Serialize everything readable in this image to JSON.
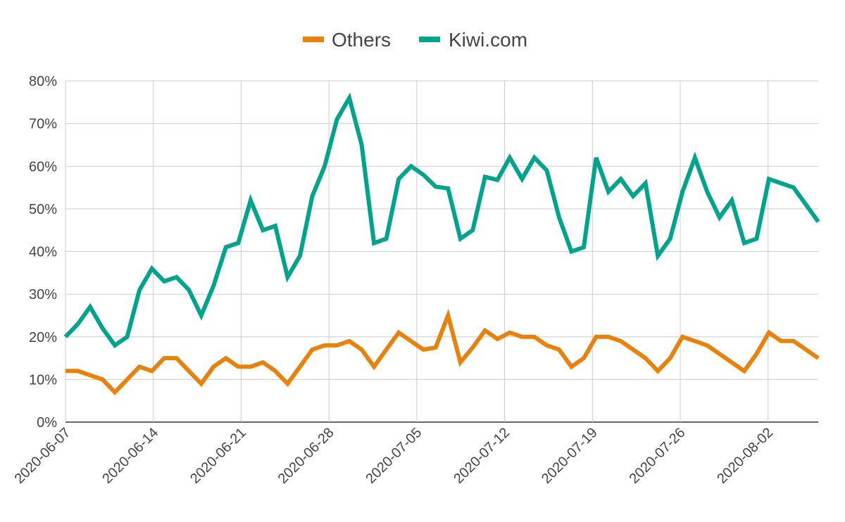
{
  "chart_data": {
    "type": "line",
    "title": "",
    "xlabel": "",
    "ylabel": "",
    "x_start": "2020-06-07",
    "x_end": "2020-08-06",
    "x_ticks": [
      "2020-06-07",
      "2020-06-14",
      "2020-06-21",
      "2020-06-28",
      "2020-07-05",
      "2020-07-12",
      "2020-07-19",
      "2020-07-26",
      "2020-08-02"
    ],
    "y_ticks": [
      "0%",
      "10%",
      "20%",
      "30%",
      "40%",
      "50%",
      "60%",
      "70%",
      "80%"
    ],
    "ylim": [
      0,
      80
    ],
    "grid": true,
    "legend_position": "top-center",
    "series": [
      {
        "name": "Others",
        "color": "#E8820C",
        "values": [
          12,
          12,
          11,
          10,
          7,
          10,
          13,
          12,
          15,
          15,
          12,
          9,
          13,
          15,
          13,
          13,
          14,
          12,
          9,
          13,
          17,
          18,
          18,
          19,
          17,
          13,
          17,
          21,
          19,
          17,
          17.5,
          25,
          14,
          17.5,
          21.5,
          19.5,
          21,
          20,
          20,
          18,
          17,
          13,
          15,
          20,
          20,
          19,
          17,
          15,
          12,
          15,
          20,
          19,
          18,
          16,
          14,
          12,
          16,
          21,
          19,
          19,
          17,
          15
        ]
      },
      {
        "name": "Kiwi.com",
        "color": "#00A38C",
        "values": [
          20,
          23,
          27,
          22,
          18,
          20,
          31,
          36,
          33,
          34,
          31,
          25,
          32,
          41,
          42,
          52,
          45,
          46,
          34,
          39,
          53,
          60,
          71,
          76,
          65,
          42,
          43,
          57,
          60,
          58,
          55.2,
          54.8,
          43,
          45,
          57.5,
          56.8,
          62,
          57,
          62,
          59,
          48,
          40,
          41,
          62,
          54,
          57,
          53,
          56,
          39,
          43,
          54,
          62,
          54,
          48,
          52,
          42,
          43,
          57,
          56,
          55,
          51,
          47
        ]
      }
    ]
  }
}
